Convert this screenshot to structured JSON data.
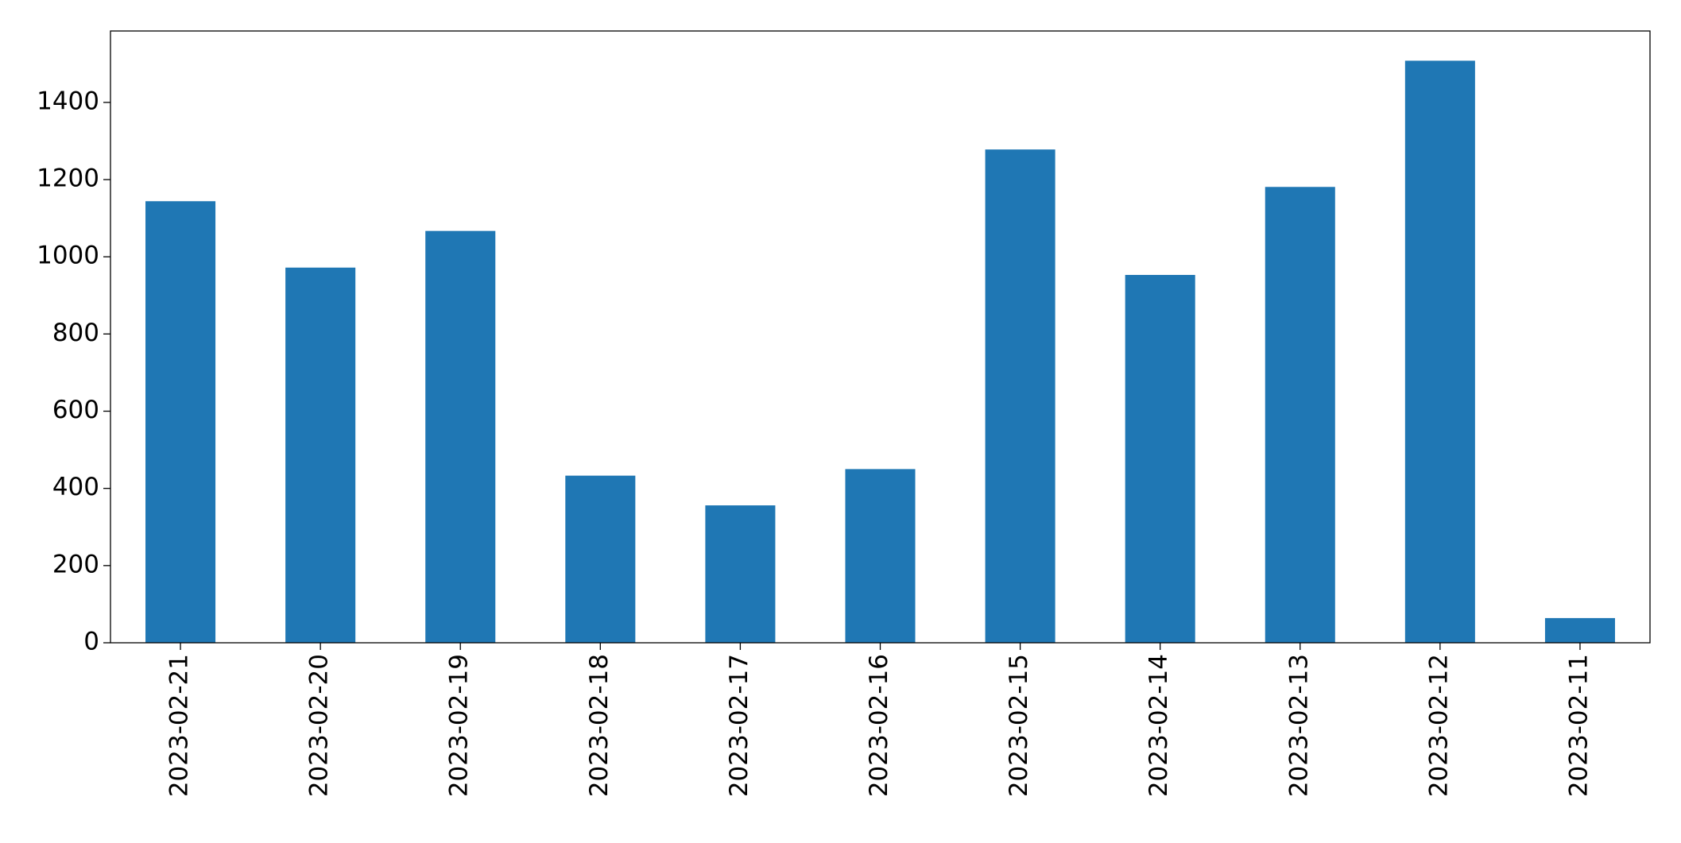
{
  "chart_data": {
    "type": "bar",
    "categories": [
      "2023-02-21",
      "2023-02-20",
      "2023-02-19",
      "2023-02-18",
      "2023-02-17",
      "2023-02-16",
      "2023-02-15",
      "2023-02-14",
      "2023-02-13",
      "2023-02-12",
      "2023-02-11"
    ],
    "values": [
      1144,
      972,
      1067,
      433,
      356,
      450,
      1278,
      953,
      1181,
      1508,
      64
    ],
    "color": "#1f77b4",
    "ylim": [
      0,
      1585
    ],
    "yticks": [
      0,
      200,
      400,
      600,
      800,
      1000,
      1200,
      1400
    ],
    "grid": false
  }
}
